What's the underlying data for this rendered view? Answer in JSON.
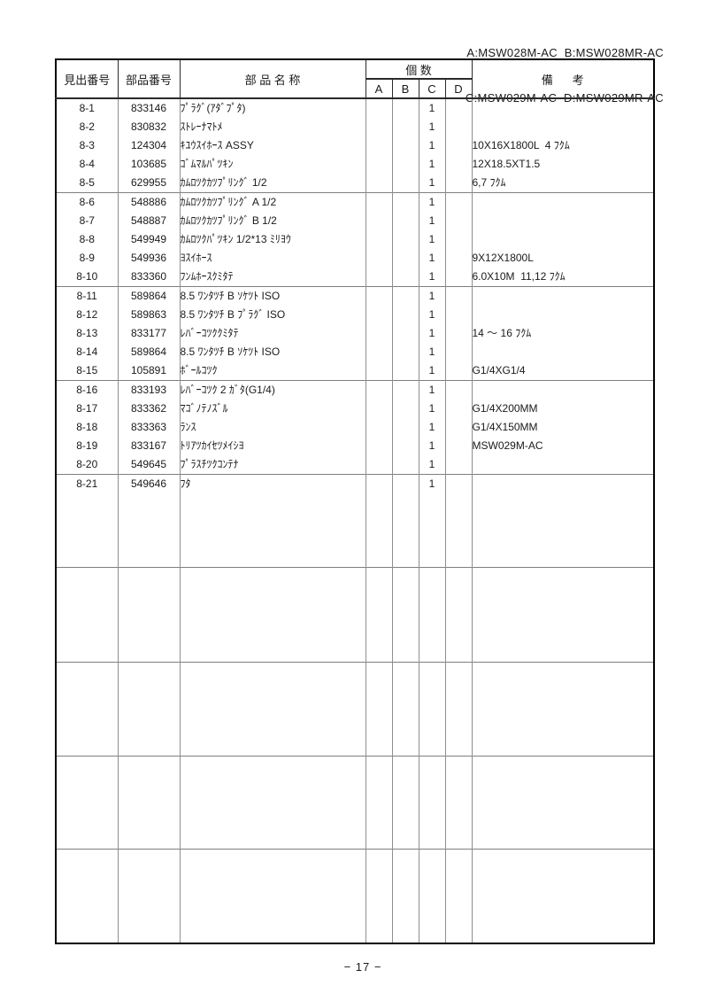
{
  "legend": {
    "line1": "A:MSW028M-AC  B:MSW028MR-AC",
    "line2": "C:MSW029M-AC  D:MSW029MR-AC"
  },
  "table": {
    "headers": {
      "index": "見出番号",
      "part_no": "部品番号",
      "part_name": "部 品 名 称",
      "quantity": "個 数",
      "qty_cols": [
        "A",
        "B",
        "C",
        "D"
      ],
      "remarks": "備      考"
    },
    "groups": [
      {
        "rows": [
          {
            "idx": "8-1",
            "part_no": "833146",
            "name": "ﾌﾟﾗｸﾞ(ｱﾀﾞﾌﾟﾀ)",
            "qty": [
              "",
              "",
              "1",
              ""
            ],
            "remark": ""
          },
          {
            "idx": "8-2",
            "part_no": "830832",
            "name": "ｽﾄﾚｰﾅﾏﾄﾒ",
            "qty": [
              "",
              "",
              "1",
              ""
            ],
            "remark": ""
          },
          {
            "idx": "8-3",
            "part_no": "124304",
            "name": "ｷﾕｳｽｲﾎｰｽ ASSY",
            "qty": [
              "",
              "",
              "1",
              ""
            ],
            "remark": "10X16X1800L  4 ﾌｸﾑ"
          },
          {
            "idx": "8-4",
            "part_no": "103685",
            "name": "ｺﾞﾑﾏﾙﾊﾟﾂｷﾝ",
            "qty": [
              "",
              "",
              "1",
              ""
            ],
            "remark": "12X18.5XT1.5"
          },
          {
            "idx": "8-5",
            "part_no": "629955",
            "name": "ｶﾑﾛﾂｸｶﾂﾌﾟﾘﾝｸﾞ 1/2",
            "qty": [
              "",
              "",
              "1",
              ""
            ],
            "remark": "6,7 ﾌｸﾑ"
          }
        ]
      },
      {
        "rows": [
          {
            "idx": "8-6",
            "part_no": "548886",
            "name": "ｶﾑﾛﾂｸｶﾂﾌﾟﾘﾝｸﾞ A 1/2",
            "qty": [
              "",
              "",
              "1",
              ""
            ],
            "remark": ""
          },
          {
            "idx": "8-7",
            "part_no": "548887",
            "name": "ｶﾑﾛﾂｸｶﾂﾌﾟﾘﾝｸﾞ B 1/2",
            "qty": [
              "",
              "",
              "1",
              ""
            ],
            "remark": ""
          },
          {
            "idx": "8-8",
            "part_no": "549949",
            "name": "ｶﾑﾛﾂｸﾊﾟﾂｷﾝ 1/2*13 ﾐﾘﾖｳ",
            "qty": [
              "",
              "",
              "1",
              ""
            ],
            "remark": ""
          },
          {
            "idx": "8-9",
            "part_no": "549936",
            "name": "ﾖｽｲﾎｰｽ",
            "qty": [
              "",
              "",
              "1",
              ""
            ],
            "remark": "9X12X1800L"
          },
          {
            "idx": "8-10",
            "part_no": "833360",
            "name": "ﾌﾝﾑﾎｰｽｸﾐﾀﾃ",
            "qty": [
              "",
              "",
              "1",
              ""
            ],
            "remark": "6.0X10M  11,12 ﾌｸﾑ"
          }
        ]
      },
      {
        "rows": [
          {
            "idx": "8-11",
            "part_no": "589864",
            "name": "8.5 ﾜﾝﾀﾂﾁ B ｿｹﾂﾄ ISO",
            "qty": [
              "",
              "",
              "1",
              ""
            ],
            "remark": ""
          },
          {
            "idx": "8-12",
            "part_no": "589863",
            "name": "8.5 ﾜﾝﾀﾂﾁ B ﾌﾟﾗｸﾞ ISO",
            "qty": [
              "",
              "",
              "1",
              ""
            ],
            "remark": ""
          },
          {
            "idx": "8-13",
            "part_no": "833177",
            "name": "ﾚﾊﾞｰｺﾂｸｸﾐﾀﾃ",
            "qty": [
              "",
              "",
              "1",
              ""
            ],
            "remark": "14 ～ 16 ﾌｸﾑ"
          },
          {
            "idx": "8-14",
            "part_no": "589864",
            "name": "8.5 ﾜﾝﾀﾂﾁ B ｿｹﾂﾄ ISO",
            "qty": [
              "",
              "",
              "1",
              ""
            ],
            "remark": ""
          },
          {
            "idx": "8-15",
            "part_no": "105891",
            "name": "ﾎﾞｰﾙｺﾂｸ",
            "qty": [
              "",
              "",
              "1",
              ""
            ],
            "remark": "G1/4XG1/4"
          }
        ]
      },
      {
        "rows": [
          {
            "idx": "8-16",
            "part_no": "833193",
            "name": "ﾚﾊﾞｰｺﾂｸ 2 ｶﾞﾀ(G1/4)",
            "qty": [
              "",
              "",
              "1",
              ""
            ],
            "remark": ""
          },
          {
            "idx": "8-17",
            "part_no": "833362",
            "name": "ﾏｺﾞﾉﾃﾉｽﾞﾙ",
            "qty": [
              "",
              "",
              "1",
              ""
            ],
            "remark": "G1/4X200MM"
          },
          {
            "idx": "8-18",
            "part_no": "833363",
            "name": "ﾗﾝｽ",
            "qty": [
              "",
              "",
              "1",
              ""
            ],
            "remark": "G1/4X150MM"
          },
          {
            "idx": "8-19",
            "part_no": "833167",
            "name": "ﾄﾘｱﾂｶｲｾﾂﾒｲｼﾖ",
            "qty": [
              "",
              "",
              "1",
              ""
            ],
            "remark": "MSW029M-AC"
          },
          {
            "idx": "8-20",
            "part_no": "549645",
            "name": "ﾌﾟﾗｽﾁﾂｸｺﾝﾃﾅ",
            "qty": [
              "",
              "",
              "1",
              ""
            ],
            "remark": ""
          }
        ]
      },
      {
        "rows": [
          {
            "idx": "8-21",
            "part_no": "549646",
            "name": "ﾌﾀ",
            "qty": [
              "",
              "",
              "1",
              ""
            ],
            "remark": ""
          }
        ]
      },
      {
        "rows": []
      },
      {
        "rows": []
      },
      {
        "rows": []
      },
      {
        "rows": []
      }
    ]
  },
  "footer": {
    "page_label": "− 17 −"
  }
}
